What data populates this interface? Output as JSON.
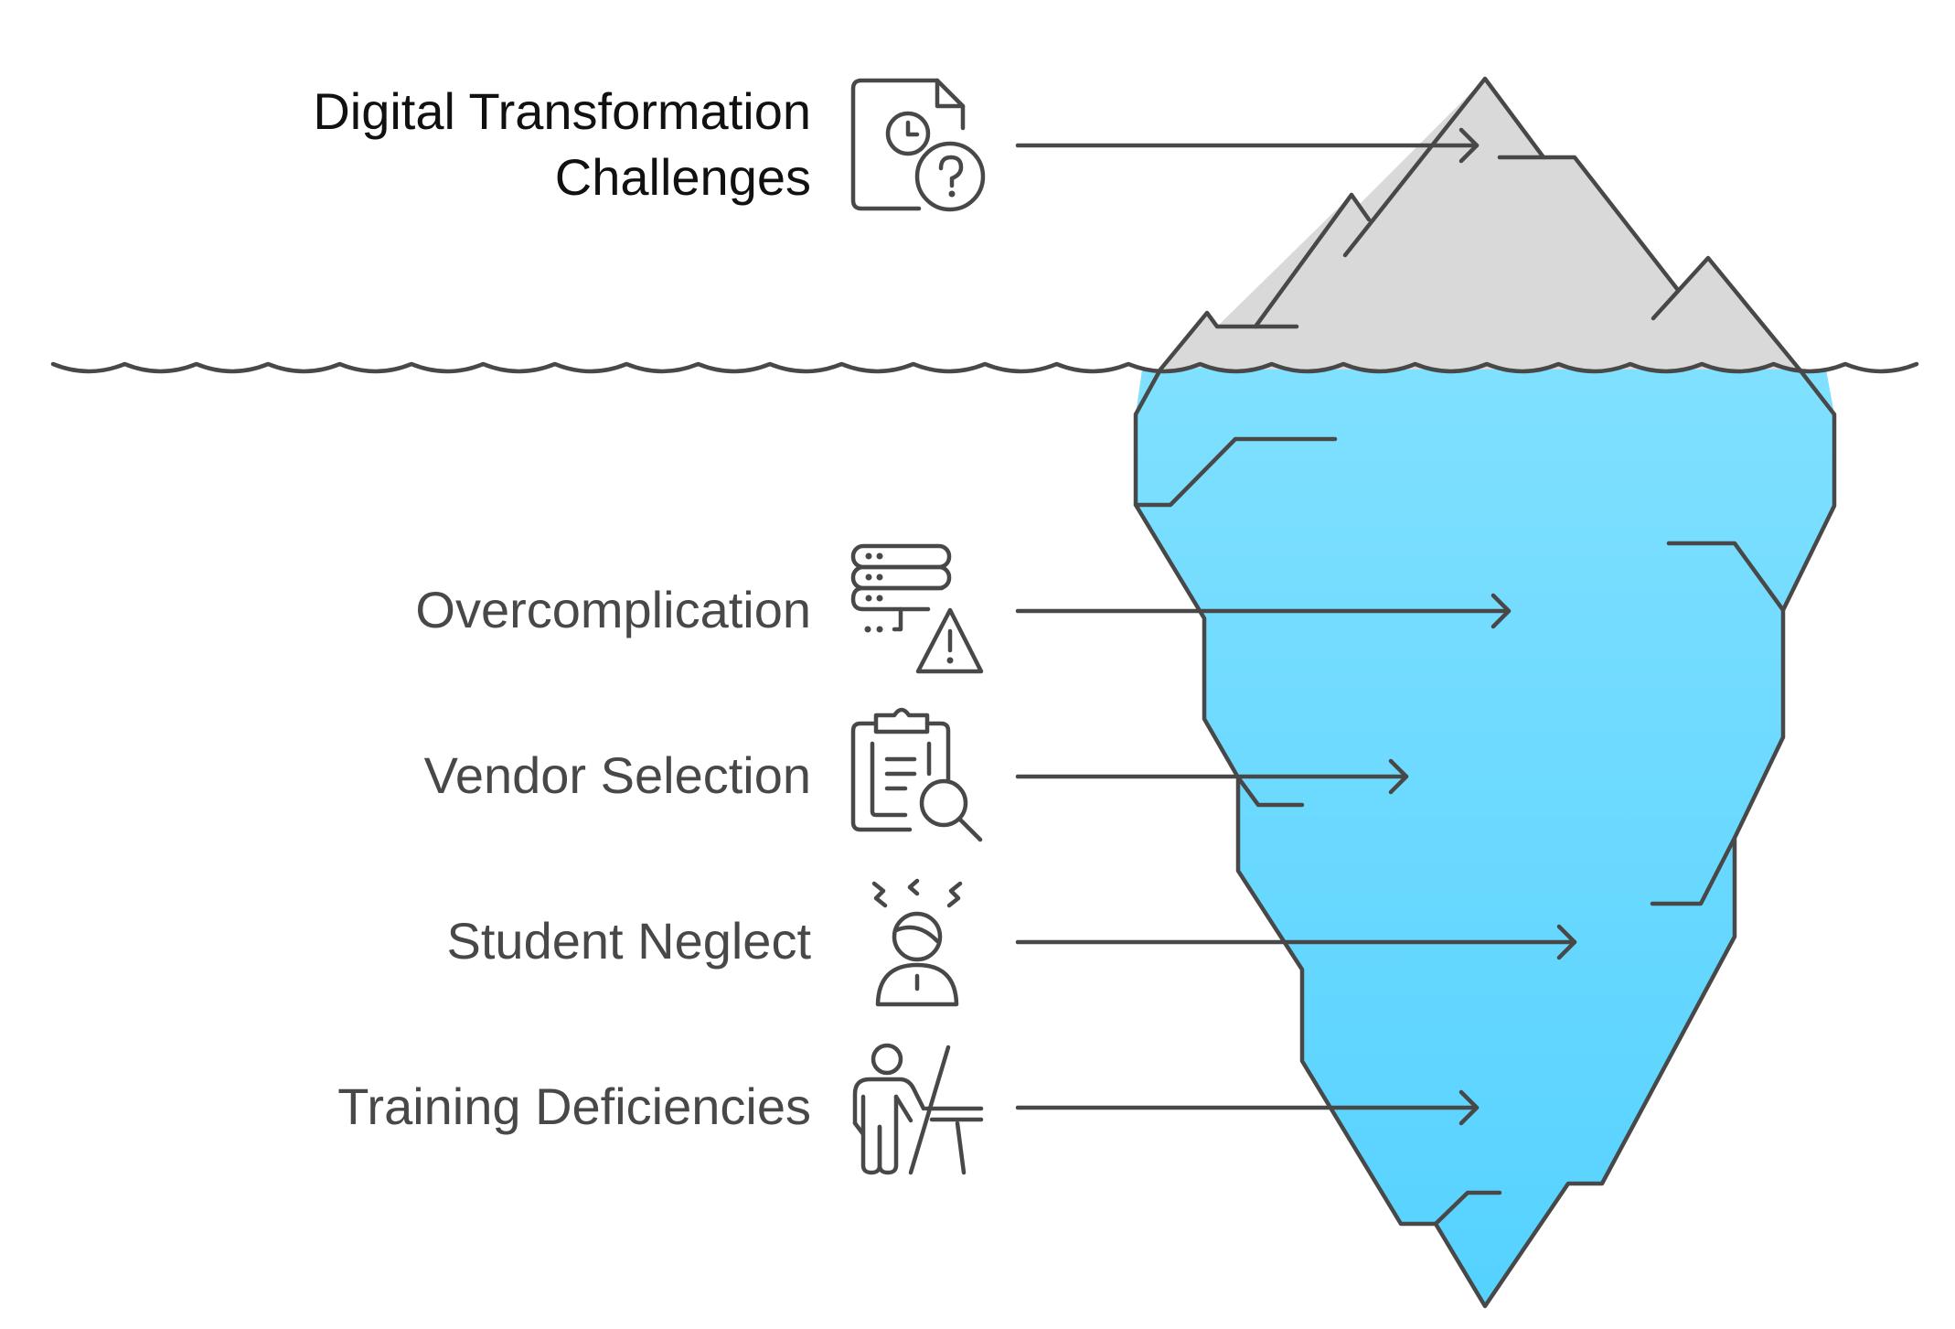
{
  "title": {
    "line1": "Digital Transformation",
    "line2": "Challenges",
    "icon": "clock-question-document-icon"
  },
  "items": [
    {
      "label": "Overcomplication",
      "icon": "server-warning-icon"
    },
    {
      "label": "Vendor Selection",
      "icon": "clipboard-search-icon"
    },
    {
      "label": "Student Neglect",
      "icon": "frustrated-student-icon"
    },
    {
      "label": "Training Deficiencies",
      "icon": "teacher-board-icon"
    }
  ],
  "colors": {
    "iceberg_top": "#d9d9d9",
    "iceberg_underwater_top": "#80e0ff",
    "iceberg_underwater_bottom": "#55d2ff",
    "ink": "#484848",
    "title_text": "#111111",
    "label_text": "#484848"
  }
}
